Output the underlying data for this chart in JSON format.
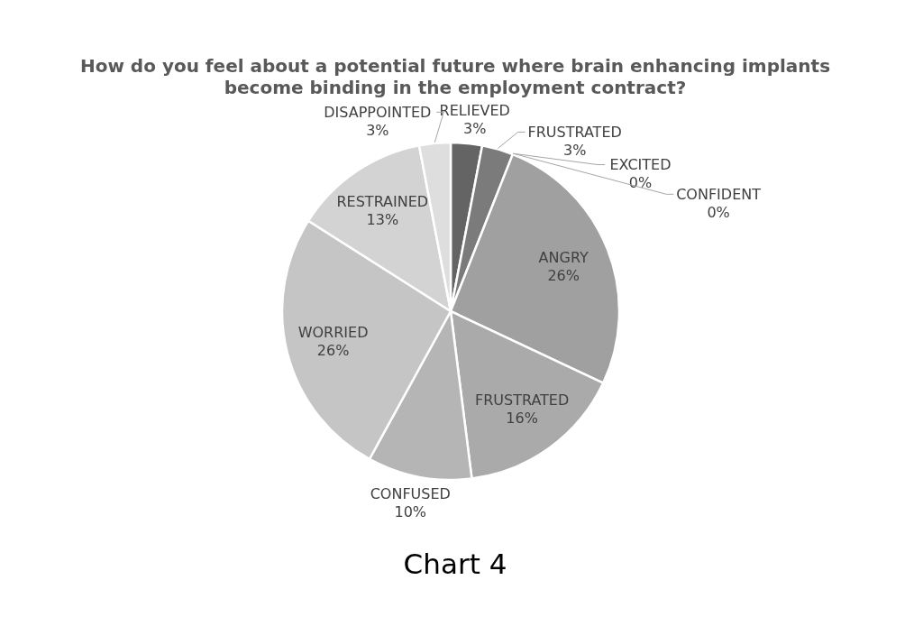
{
  "chart_data": {
    "type": "pie",
    "title": "How do you feel about a potential future where brain enhancing implants become binding in the employment contract?",
    "categories": [
      "RELIEVED",
      "FRUSTRATED",
      "EXCITED",
      "CONFIDENT",
      "ANGRY",
      "FRUSTRATED",
      "CONFUSED",
      "WORRIED",
      "RESTRAINED",
      "DISAPPOINTED"
    ],
    "values": [
      3,
      3,
      0,
      0,
      26,
      16,
      10,
      26,
      13,
      3
    ],
    "value_labels": [
      "3%",
      "3%",
      "0%",
      "0%",
      "26%",
      "16%",
      "10%",
      "26%",
      "13%",
      "3%"
    ],
    "colors": [
      "#646464",
      "#7b7b7b",
      "#8c8c8c",
      "#969696",
      "#a0a0a0",
      "#aaaaaa",
      "#b5b5b5",
      "#c5c5c5",
      "#d3d3d3",
      "#dedede"
    ],
    "annotations": [
      "Chart 4"
    ]
  }
}
